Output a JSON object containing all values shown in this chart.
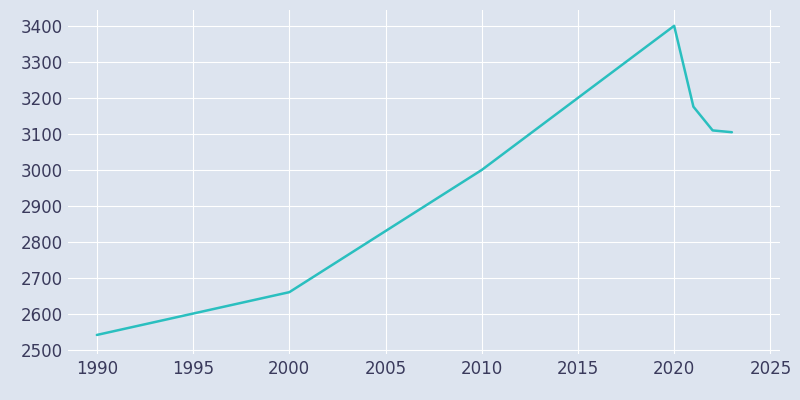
{
  "years": [
    1990,
    2000,
    2010,
    2020,
    2021,
    2022,
    2023
  ],
  "population": [
    2541,
    2660,
    3000,
    3401,
    3176,
    3110,
    3105
  ],
  "line_color": "#2abfbf",
  "bg_color": "#dde4ef",
  "figure_bg": "#dde4ef",
  "xlim": [
    1988.5,
    2025.5
  ],
  "ylim": [
    2488,
    3445
  ],
  "xticks": [
    1990,
    1995,
    2000,
    2005,
    2010,
    2015,
    2020,
    2025
  ],
  "yticks": [
    2500,
    2600,
    2700,
    2800,
    2900,
    3000,
    3100,
    3200,
    3300,
    3400
  ],
  "linewidth": 1.8,
  "grid_color": "#ffffff",
  "tick_color": "#3a3a5c",
  "label_fontsize": 12
}
